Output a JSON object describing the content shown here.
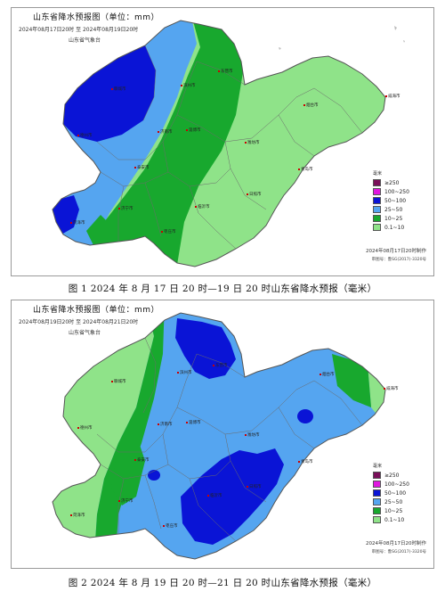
{
  "figures": [
    {
      "title": "山东省降水预报图（单位：mm）",
      "date_range": "2024年08月17日20时 至 2024年08月19日20时",
      "agency": "山东省气象台",
      "legend_header": "毫米",
      "made_time": "2024年08月17日20时制作",
      "approval": "审图号：鲁SG(2017)-3320号",
      "caption": "图 1 2024 年 8 月 17 日 20 时—19 日 20 时山东省降水预报（毫米）",
      "cities": [
        "聊城市",
        "德州市",
        "滨州市",
        "东营市",
        "淄博市",
        "济南市",
        "泰安市",
        "潍坊市",
        "烟台市",
        "威海市",
        "青岛市",
        "日照市",
        "临沂市",
        "济宁市",
        "菏泽市",
        "枣庄市"
      ]
    },
    {
      "title": "山东省降水预报图（单位：mm）",
      "date_range": "2024年08月19日20时 至 2024年08月21日20时",
      "agency": "山东省气象台",
      "legend_header": "毫米",
      "made_time": "2024年08月17日20时制作",
      "approval": "审图号：鲁SG(2017)-3320号",
      "caption": "图 2 2024 年 8 月 19 日 20 时—21 日 20 时山东省降水预报（毫米）",
      "cities": [
        "聊城市",
        "德州市",
        "滨州市",
        "东营市",
        "淄博市",
        "济南市",
        "泰安市",
        "潍坊市",
        "烟台市",
        "威海市",
        "青岛市",
        "日照市",
        "临沂市",
        "济宁市",
        "菏泽市",
        "枣庄市"
      ]
    }
  ],
  "legend_items": [
    {
      "label": "≥250",
      "color": "#7a0f5a"
    },
    {
      "label": "100~250",
      "color": "#e017e0"
    },
    {
      "label": "50~100",
      "color": "#0a14d6"
    },
    {
      "label": "25~50",
      "color": "#55a5f0"
    },
    {
      "label": "10~25",
      "color": "#18a82e"
    },
    {
      "label": "0.1~10",
      "color": "#8fe389"
    }
  ],
  "colors": {
    "r0_1_10": "#8fe389",
    "r10_25": "#18a82e",
    "r25_50": "#55a5f0",
    "r50_100": "#0a14d6",
    "border": "#555555"
  }
}
